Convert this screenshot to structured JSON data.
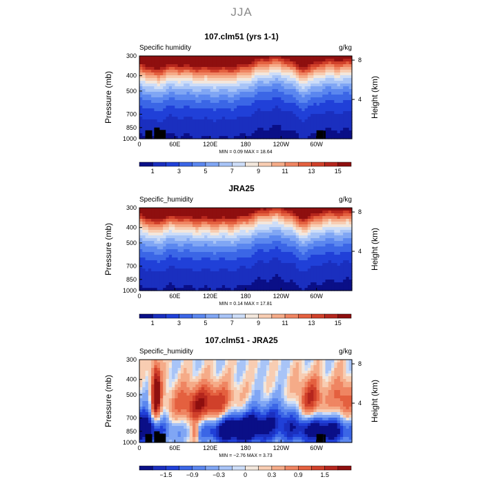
{
  "page_title": "JJA",
  "chart_data": [
    {
      "type": "heatmap",
      "title": "107.clm51 (yrs 1-1)",
      "left_label": "Specific humidity",
      "right_label": "g/kg",
      "ylabel": "Pressure (mb)",
      "y2label": "Height (km)",
      "x_ticks": [
        "0",
        "60E",
        "120E",
        "180",
        "120W",
        "60W"
      ],
      "x_tick_positions": [
        0,
        60,
        120,
        180,
        240,
        300
      ],
      "xlim": [
        0,
        360
      ],
      "y_ticks": [
        "300",
        "400",
        "500",
        "700",
        "850",
        "1000"
      ],
      "y_tick_values": [
        300,
        400,
        500,
        700,
        850,
        1000
      ],
      "ylim": [
        1000,
        300
      ],
      "y2_ticks": [
        "8",
        "4"
      ],
      "y2_tick_values": [
        8,
        4
      ],
      "min_max": "MIN =    0.09   MAX =   18.64",
      "colorbar": {
        "labels": [
          "1",
          "3",
          "5",
          "7",
          "9",
          "11",
          "13",
          "15"
        ],
        "levels": [
          0,
          1,
          2,
          3,
          4,
          5,
          6,
          7,
          8,
          9,
          10,
          11,
          12,
          13,
          14,
          15,
          16
        ]
      },
      "field": "moist",
      "has_terrain": true
    },
    {
      "type": "heatmap",
      "title": "JRA25",
      "left_label": "Specific_humidity",
      "right_label": "g/kg",
      "ylabel": "Pressure (mb)",
      "y2label": "Height (km)",
      "x_ticks": [
        "0",
        "60E",
        "120E",
        "180",
        "120W",
        "60W"
      ],
      "x_tick_positions": [
        0,
        60,
        120,
        180,
        240,
        300
      ],
      "xlim": [
        0,
        360
      ],
      "y_ticks": [
        "300",
        "400",
        "500",
        "700",
        "850",
        "1000"
      ],
      "y_tick_values": [
        300,
        400,
        500,
        700,
        850,
        1000
      ],
      "ylim": [
        1000,
        300
      ],
      "y2_ticks": [
        "8",
        "4"
      ],
      "y2_tick_values": [
        8,
        4
      ],
      "min_max": "MIN =    0.14   MAX =   17.81",
      "colorbar": {
        "labels": [
          "1",
          "3",
          "5",
          "7",
          "9",
          "11",
          "13",
          "15"
        ],
        "levels": [
          0,
          1,
          2,
          3,
          4,
          5,
          6,
          7,
          8,
          9,
          10,
          11,
          12,
          13,
          14,
          15,
          16
        ]
      },
      "field": "moist",
      "has_terrain": false
    },
    {
      "type": "heatmap",
      "title": "107.clm51 - JRA25",
      "left_label": "Specific_humidity",
      "right_label": "g/kg",
      "ylabel": "Pressure (mb)",
      "y2label": "Height (km)",
      "x_ticks": [
        "0",
        "60E",
        "120E",
        "180",
        "120W",
        "60W"
      ],
      "x_tick_positions": [
        0,
        60,
        120,
        180,
        240,
        300
      ],
      "xlim": [
        0,
        360
      ],
      "y_ticks": [
        "300",
        "400",
        "500",
        "700",
        "850",
        "1000"
      ],
      "y_tick_values": [
        300,
        400,
        500,
        700,
        850,
        1000
      ],
      "ylim": [
        1000,
        300
      ],
      "y2_ticks": [
        "8",
        "4"
      ],
      "y2_tick_values": [
        8,
        4
      ],
      "min_max": "MIN =   −2.76   MAX =    3.73",
      "colorbar": {
        "labels": [
          "−1.5",
          "−0.9",
          "−0.3",
          "0",
          "0.3",
          "0.9",
          "1.5"
        ],
        "levels": [
          -2.1,
          -1.8,
          -1.5,
          -1.2,
          -0.9,
          -0.6,
          -0.3,
          -0.1,
          0,
          0.1,
          0.3,
          0.6,
          0.9,
          1.2,
          1.5,
          1.8,
          2.1
        ]
      },
      "field": "diff",
      "has_terrain": true
    }
  ],
  "palette": [
    "#0a0f87",
    "#1a2fbf",
    "#2040d8",
    "#3b66e6",
    "#5b87ef",
    "#80a6f4",
    "#a8c4f7",
    "#cdddf8",
    "#f3e7dc",
    "#f8cdb2",
    "#f5ab88",
    "#ef8562",
    "#e4603f",
    "#d0402a",
    "#b5261d",
    "#8e0f0f"
  ],
  "terrain_color": "#000000"
}
